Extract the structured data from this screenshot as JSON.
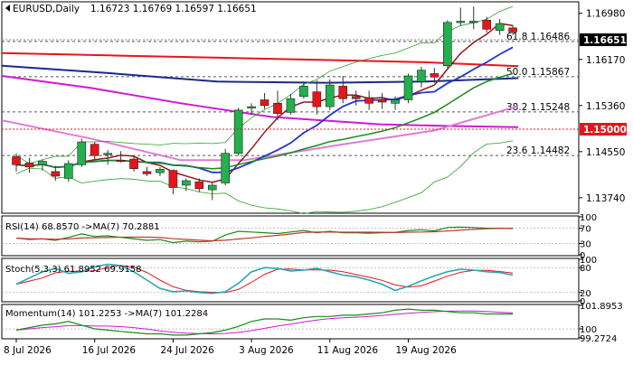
{
  "header": {
    "symbol": "EURUSD,Daily",
    "ohlc": "1.16723 1.16769 1.16597 1.16651"
  },
  "price_axis": {
    "ticks": [
      "1.16980",
      "1.16170",
      "1.15360",
      "1.14550",
      "1.13740"
    ],
    "current_price": "1.16651",
    "red_level": "1.15000"
  },
  "fibonacci": [
    {
      "label": "61.8 1.16486",
      "value": 1.16486
    },
    {
      "label": "50.0 1.15867",
      "value": 1.15867
    },
    {
      "label": "38.2 1.15248",
      "value": 1.15248
    },
    {
      "label": "23.6 1.14482",
      "value": 1.14482
    }
  ],
  "panels": {
    "rsi": {
      "label": "RSI(14) 68.8570 ->MA(7) 70.2881",
      "ticks": [
        "100",
        "70",
        "30",
        "0"
      ]
    },
    "stoch": {
      "label": "Stoch(5,3,3) 61.8952 69.9158",
      "ticks": [
        "100",
        "80",
        "20",
        "0"
      ]
    },
    "momentum": {
      "label": "Momentum(14) 101.2253 ->MA(7) 101.2284",
      "ticks": [
        "101.8953",
        "100",
        "99.2724"
      ]
    }
  },
  "time_axis": [
    "8 Jul 2026",
    "16 Jul 2026",
    "24 Jul 2026",
    "3 Aug 2026",
    "11 Aug 2026",
    "19 Aug 2026"
  ],
  "colors": {
    "bull": "#22b14c",
    "bear": "#e8141b",
    "ma_red": "#e8141b",
    "ma_navy": "#1a2a8c",
    "ma_magenta": "#d01ad0",
    "ma_pink": "#e07ad8",
    "ma_darkred": "#8b1a1a",
    "ma_blue": "#2233cc",
    "ma_green": "#1a8a1a",
    "bollinger": "#2aa02a",
    "rsi_line": "#1a8a1a",
    "rsi_ma": "#c0392b",
    "stoch_main": "#2aa7b5",
    "stoch_signal": "#e8141b",
    "momentum_line": "#1a8a1a",
    "momentum_ma": "#d01ad0",
    "current_price_bg": "#000000",
    "red_level_bg": "#e8141b"
  },
  "chart_data": {
    "type": "candlestick",
    "title": "EURUSD,Daily",
    "ylim": [
      1.135,
      1.1715
    ],
    "candles": [
      {
        "o": 1.1446,
        "h": 1.1452,
        "l": 1.142,
        "c": 1.1432
      },
      {
        "o": 1.1435,
        "h": 1.1444,
        "l": 1.1418,
        "c": 1.1428
      },
      {
        "o": 1.1432,
        "h": 1.1441,
        "l": 1.1422,
        "c": 1.1438
      },
      {
        "o": 1.142,
        "h": 1.143,
        "l": 1.1404,
        "c": 1.1412
      },
      {
        "o": 1.1408,
        "h": 1.144,
        "l": 1.1402,
        "c": 1.1434
      },
      {
        "o": 1.1432,
        "h": 1.1478,
        "l": 1.1428,
        "c": 1.1472
      },
      {
        "o": 1.1468,
        "h": 1.1472,
        "l": 1.144,
        "c": 1.1448
      },
      {
        "o": 1.145,
        "h": 1.1458,
        "l": 1.1432,
        "c": 1.1452
      },
      {
        "o": 1.144,
        "h": 1.1456,
        "l": 1.1436,
        "c": 1.1438
      },
      {
        "o": 1.1442,
        "h": 1.1448,
        "l": 1.142,
        "c": 1.1425
      },
      {
        "o": 1.142,
        "h": 1.1428,
        "l": 1.1412,
        "c": 1.1416
      },
      {
        "o": 1.1418,
        "h": 1.1428,
        "l": 1.1412,
        "c": 1.1424
      },
      {
        "o": 1.1422,
        "h": 1.1424,
        "l": 1.138,
        "c": 1.1392
      },
      {
        "o": 1.1396,
        "h": 1.1408,
        "l": 1.1386,
        "c": 1.1404
      },
      {
        "o": 1.1402,
        "h": 1.1408,
        "l": 1.1384,
        "c": 1.139
      },
      {
        "o": 1.1388,
        "h": 1.14,
        "l": 1.137,
        "c": 1.1396
      },
      {
        "o": 1.14,
        "h": 1.146,
        "l": 1.1396,
        "c": 1.1452
      },
      {
        "o": 1.1452,
        "h": 1.1532,
        "l": 1.1448,
        "c": 1.1528
      },
      {
        "o": 1.1532,
        "h": 1.154,
        "l": 1.152,
        "c": 1.1534
      },
      {
        "o": 1.1546,
        "h": 1.1558,
        "l": 1.153,
        "c": 1.1536
      },
      {
        "o": 1.154,
        "h": 1.1562,
        "l": 1.151,
        "c": 1.1522
      },
      {
        "o": 1.1524,
        "h": 1.1556,
        "l": 1.152,
        "c": 1.1548
      },
      {
        "o": 1.1552,
        "h": 1.1578,
        "l": 1.1548,
        "c": 1.157
      },
      {
        "o": 1.156,
        "h": 1.158,
        "l": 1.152,
        "c": 1.1534
      },
      {
        "o": 1.1534,
        "h": 1.1582,
        "l": 1.1528,
        "c": 1.1572
      },
      {
        "o": 1.157,
        "h": 1.1588,
        "l": 1.154,
        "c": 1.1548
      },
      {
        "o": 1.1552,
        "h": 1.1562,
        "l": 1.1536,
        "c": 1.1548
      },
      {
        "o": 1.155,
        "h": 1.1562,
        "l": 1.1528,
        "c": 1.154
      },
      {
        "o": 1.1546,
        "h": 1.1558,
        "l": 1.153,
        "c": 1.1542
      },
      {
        "o": 1.154,
        "h": 1.1552,
        "l": 1.1528,
        "c": 1.1546
      },
      {
        "o": 1.1546,
        "h": 1.1592,
        "l": 1.154,
        "c": 1.1588
      },
      {
        "o": 1.1578,
        "h": 1.1604,
        "l": 1.1568,
        "c": 1.1598
      },
      {
        "o": 1.1592,
        "h": 1.1602,
        "l": 1.1576,
        "c": 1.1586
      },
      {
        "o": 1.1606,
        "h": 1.1686,
        "l": 1.1602,
        "c": 1.1682
      },
      {
        "o": 1.1684,
        "h": 1.1708,
        "l": 1.1676,
        "c": 1.1684
      },
      {
        "o": 1.1684,
        "h": 1.171,
        "l": 1.167,
        "c": 1.1684
      },
      {
        "o": 1.1686,
        "h": 1.1692,
        "l": 1.1664,
        "c": 1.167
      },
      {
        "o": 1.1668,
        "h": 1.1688,
        "l": 1.166,
        "c": 1.168
      },
      {
        "o": 1.16723,
        "h": 1.16769,
        "l": 1.16597,
        "c": 1.16651
      }
    ],
    "indicators": {
      "ma_red": [
        1.162,
        1.1604
      ],
      "ma_navy": [
        1.1614,
        1.1585
      ],
      "ma_magenta": [
        1.1588,
        1.15
      ],
      "ma_pink": [
        1.151,
        1.1535
      ]
    },
    "rsi": {
      "value": 68.857,
      "ma": 70.2881,
      "ylim": [
        0,
        100
      ]
    },
    "stoch": {
      "main": 61.8952,
      "signal": 69.9158,
      "ylim": [
        0,
        100
      ]
    },
    "momentum": {
      "value": 101.2253,
      "ma": 101.2284,
      "ylim": [
        99.2724,
        101.8953
      ]
    }
  }
}
